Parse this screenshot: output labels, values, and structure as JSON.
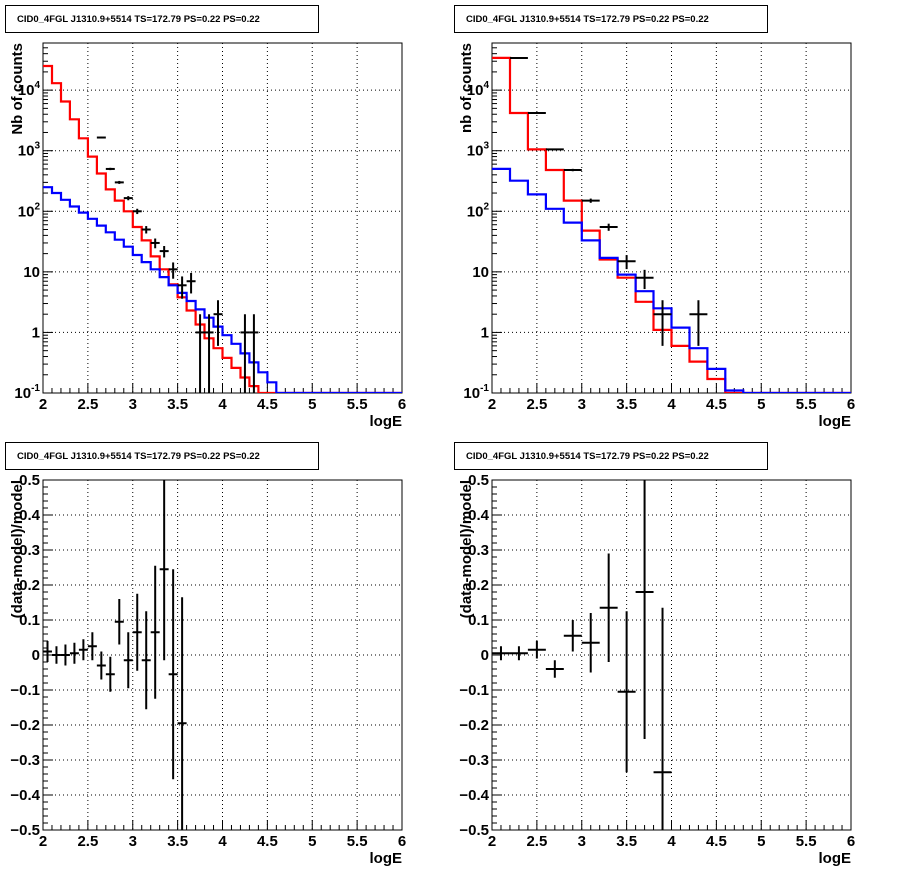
{
  "panels": [
    {
      "title": "CID0_4FGL J1310.9+5514 TS=172.79 PS=0.22 PS=0.22",
      "xlabel": "logE",
      "ylabel": "Nb of counts"
    },
    {
      "title": "CID0_4FGL J1310.9+5514 TS=172.79 PS=0.22 PS=0.22",
      "xlabel": "logE",
      "ylabel": "nb of counts"
    },
    {
      "title": "CID0_4FGL J1310.9+5514 TS=172.79 PS=0.22 PS=0.22",
      "xlabel": "logE",
      "ylabel": "(data-model)/model"
    },
    {
      "title": "CID0_4FGL J1310.9+5514 TS=172.79 PS=0.22 PS=0.22",
      "xlabel": "logE",
      "ylabel": "(data-model)/model"
    }
  ],
  "colors": {
    "data": "#000000",
    "total_model": "#ff0000",
    "component_model": "#0000ff",
    "grid": "#000000"
  },
  "chart_data": [
    {
      "type": "line",
      "title": "CID0_4FGL J1310.9+5514 TS=172.79 PS=0.22 PS=0.22",
      "xlabel": "logE",
      "ylabel": "Nb of counts",
      "xlim": [
        2,
        6
      ],
      "ylim": [
        0.1,
        60000
      ],
      "yscale": "log",
      "grid": true,
      "x_ticks": [
        "2",
        "2.5",
        "3",
        "3.5",
        "4",
        "4.5",
        "5",
        "5.5",
        "6"
      ],
      "y_ticks": [
        "10^-1",
        "1",
        "10",
        "10^2",
        "10^3",
        "10^4"
      ],
      "bin_edges": [
        2.0,
        2.1,
        2.2,
        2.3,
        2.4,
        2.5,
        2.6,
        2.7,
        2.8,
        2.9,
        3.0,
        3.1,
        3.2,
        3.3,
        3.4,
        3.5,
        3.6,
        3.7,
        3.8,
        3.9,
        4.0,
        4.1,
        4.2,
        4.3,
        4.4,
        4.5,
        4.6,
        4.7,
        4.8,
        4.9,
        5.0,
        5.1,
        5.2,
        5.3,
        5.4,
        5.5,
        5.6,
        5.7,
        5.8,
        5.9,
        6.0
      ],
      "series": [
        {
          "kind": "hist",
          "values": [
            25000,
            13000,
            6500,
            3300,
            1600,
            800,
            420,
            230,
            150,
            100,
            55,
            33,
            18,
            11,
            6.2,
            3.8,
            2.3,
            1.35,
            0.8,
            0.55,
            0.38,
            0.26,
            0.18,
            0.13,
            0.1,
            0.1,
            0.1,
            0.1,
            0.1,
            0.1,
            0.1,
            0.1,
            0.1,
            0.1,
            0.1,
            0.1,
            0.1,
            0.1,
            0.1,
            0.1
          ]
        },
        {
          "kind": "hist",
          "values": [
            250,
            200,
            155,
            120,
            95,
            75,
            58,
            45,
            34,
            26,
            19,
            14.5,
            11,
            8.2,
            6,
            4.5,
            3.3,
            2.4,
            1.75,
            1.25,
            0.9,
            0.65,
            0.45,
            0.32,
            0.22,
            0.15,
            0.1,
            0.1,
            0.1,
            0.1,
            0.1,
            0.1,
            0.1,
            0.1,
            0.1,
            0.1,
            0.1,
            0.1,
            0.1,
            0.1
          ]
        },
        {
          "kind": "points",
          "x": [
            2.65,
            2.75,
            2.85,
            2.95,
            3.05,
            3.15,
            3.25,
            3.35,
            3.45,
            3.55,
            3.65,
            3.75,
            3.85,
            3.95,
            4.25,
            4.35
          ],
          "y": [
            1650,
            500,
            300,
            165,
            100,
            50,
            30,
            22,
            11,
            6,
            7,
            1,
            1,
            2,
            1,
            1
          ],
          "err_lo": [
            40,
            22,
            17,
            13,
            10,
            7,
            5.5,
            4.7,
            3.3,
            2.4,
            2.6,
            0.999,
            0.999,
            1.4,
            0.999,
            0.999
          ],
          "err_hi": [
            40,
            22,
            17,
            13,
            10,
            7,
            5.5,
            4.7,
            3.3,
            2.4,
            2.6,
            1.0,
            1.0,
            1.4,
            1.0,
            1.0
          ]
        }
      ]
    },
    {
      "type": "line",
      "title": "CID0_4FGL J1310.9+5514 TS=172.79 PS=0.22 PS=0.22",
      "xlabel": "logE",
      "ylabel": "nb of counts",
      "xlim": [
        2,
        6
      ],
      "ylim": [
        0.1,
        60000
      ],
      "yscale": "log",
      "grid": true,
      "x_ticks": [
        "2",
        "2.5",
        "3",
        "3.5",
        "4",
        "4.5",
        "5",
        "5.5",
        "6"
      ],
      "y_ticks": [
        "10^-1",
        "1",
        "10",
        "10^2",
        "10^3",
        "10^4"
      ],
      "bin_edges": [
        2.0,
        2.2,
        2.4,
        2.6,
        2.8,
        3.0,
        3.2,
        3.4,
        3.6,
        3.8,
        4.0,
        4.2,
        4.4,
        4.6,
        4.8,
        5.0,
        5.2,
        5.4,
        5.6,
        5.8,
        6.0
      ],
      "series": [
        {
          "kind": "hist",
          "values": [
            34000,
            4200,
            1050,
            480,
            150,
            48,
            16,
            8,
            3.2,
            1.1,
            0.6,
            0.33,
            0.17,
            0.1,
            0.1,
            0.1,
            0.1,
            0.1,
            0.1,
            0.1
          ]
        },
        {
          "kind": "hist",
          "values": [
            500,
            320,
            190,
            110,
            65,
            33,
            17,
            9,
            4.8,
            2.5,
            1.2,
            0.55,
            0.25,
            0.11,
            0.1,
            0.1,
            0.1,
            0.1,
            0.1,
            0.1
          ]
        },
        {
          "kind": "points",
          "x": [
            2.3,
            2.5,
            2.7,
            2.9,
            3.1,
            3.3,
            3.5,
            3.7,
            3.9,
            4.3
          ],
          "y": [
            34000,
            4200,
            1050,
            480,
            150,
            55,
            15,
            8,
            2,
            2
          ],
          "err_lo": [
            184,
            65,
            32,
            22,
            12,
            7.4,
            3.9,
            2.8,
            1.4,
            1.4
          ],
          "err_hi": [
            184,
            65,
            32,
            22,
            12,
            7.4,
            3.9,
            2.8,
            1.4,
            1.4
          ]
        }
      ]
    },
    {
      "type": "scatter",
      "title": "CID0_4FGL J1310.9+5514 TS=172.79 PS=0.22 PS=0.22",
      "xlabel": "logE",
      "ylabel": "(data-model)/model",
      "xlim": [
        2,
        6
      ],
      "ylim": [
        -0.5,
        0.5
      ],
      "grid": true,
      "x_ticks": [
        "2",
        "2.5",
        "3",
        "3.5",
        "4",
        "4.5",
        "5",
        "5.5",
        "6"
      ],
      "y_ticks": [
        "-0.5",
        "-0.4",
        "-0.3",
        "-0.2",
        "-0.1",
        "0",
        "0.1",
        "0.2",
        "0.3",
        "0.4",
        "0.5"
      ],
      "points": {
        "x": [
          2.05,
          2.15,
          2.25,
          2.35,
          2.45,
          2.55,
          2.65,
          2.75,
          2.85,
          2.95,
          3.05,
          3.15,
          3.25,
          3.35,
          3.45,
          3.55
        ],
        "y": [
          0.01,
          0.0,
          0.0,
          0.005,
          0.015,
          0.025,
          -0.03,
          -0.055,
          0.095,
          -0.015,
          0.065,
          -0.015,
          0.065,
          0.245,
          -0.055,
          -0.195
        ],
        "err": [
          0.03,
          0.025,
          0.03,
          0.03,
          0.03,
          0.04,
          0.04,
          0.05,
          0.065,
          0.08,
          0.11,
          0.14,
          0.19,
          0.26,
          0.3,
          0.36
        ]
      }
    },
    {
      "type": "scatter",
      "title": "CID0_4FGL J1310.9+5514 TS=172.79 PS=0.22 PS=0.22",
      "xlabel": "logE",
      "ylabel": "(data-model)/model",
      "xlim": [
        2,
        6
      ],
      "ylim": [
        -0.5,
        0.5
      ],
      "grid": true,
      "x_ticks": [
        "2",
        "2.5",
        "3",
        "3.5",
        "4",
        "4.5",
        "5",
        "5.5",
        "6"
      ],
      "y_ticks": [
        "-0.5",
        "-0.4",
        "-0.3",
        "-0.2",
        "-0.1",
        "0",
        "0.1",
        "0.2",
        "0.3",
        "0.4",
        "0.5"
      ],
      "points": {
        "x": [
          2.1,
          2.3,
          2.5,
          2.7,
          2.9,
          3.1,
          3.3,
          3.5,
          3.7,
          3.9
        ],
        "y": [
          0.005,
          0.005,
          0.015,
          -0.04,
          0.055,
          0.035,
          0.135,
          -0.105,
          0.18,
          -0.335
        ],
        "err": [
          0.02,
          0.02,
          0.025,
          0.025,
          0.045,
          0.085,
          0.155,
          0.23,
          0.42,
          0.47
        ]
      }
    }
  ]
}
